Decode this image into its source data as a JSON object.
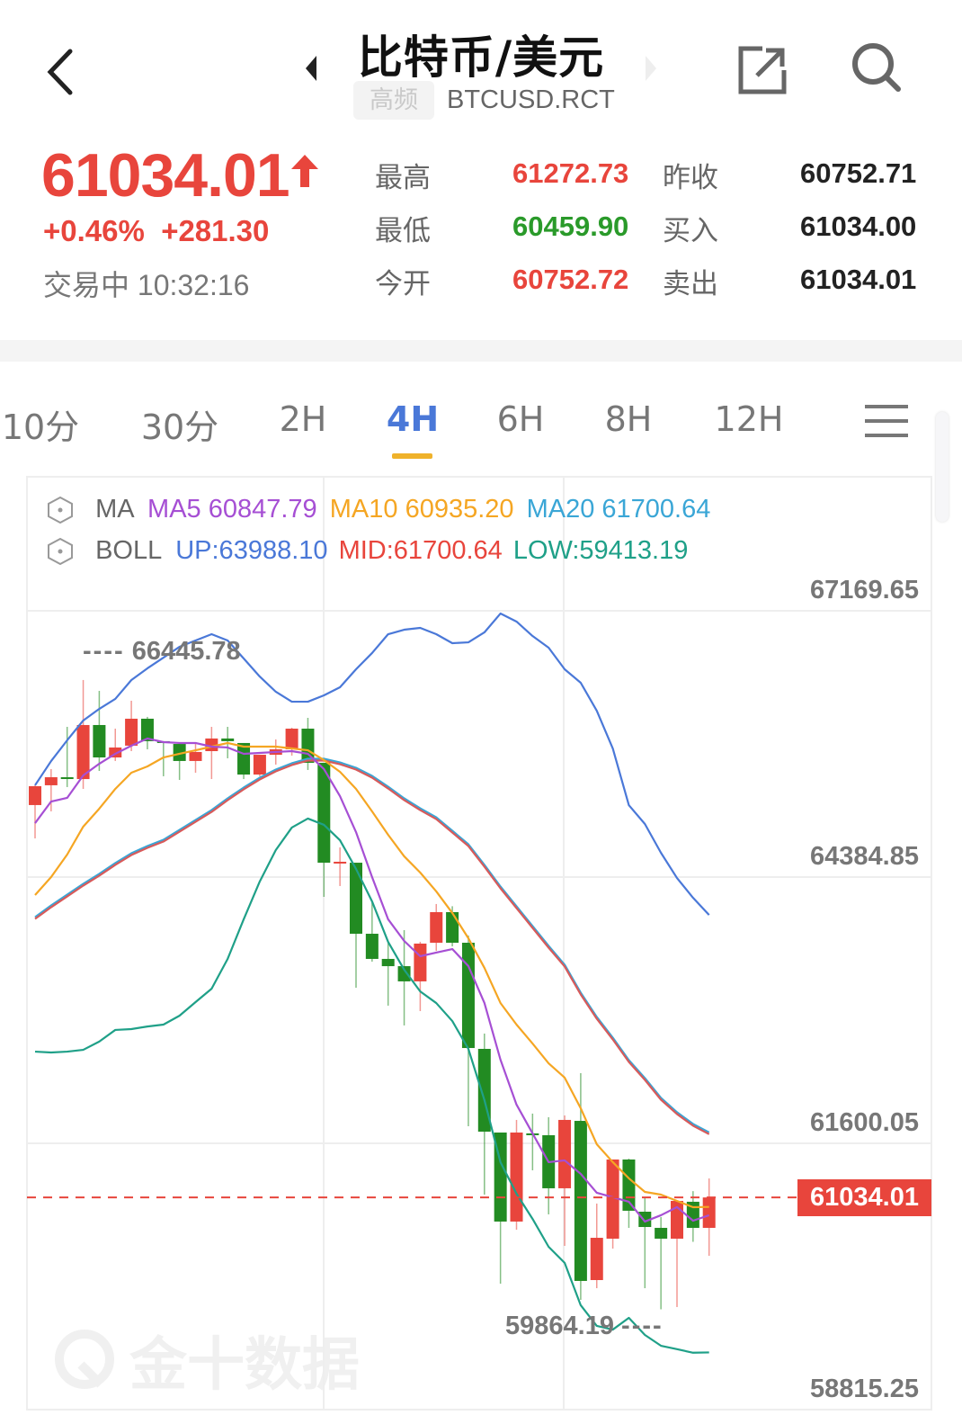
{
  "header": {
    "title": "比特币/美元",
    "badge": "高频",
    "symbol": "BTCUSD.RCT",
    "icons": [
      "back-chevron-icon",
      "prev-triangle-icon",
      "next-triangle-icon",
      "share-icon",
      "search-icon"
    ]
  },
  "quote": {
    "price": "61034.01",
    "direction": "up",
    "change_pct": "+0.46%",
    "change_abs": "+281.30",
    "status": "交易中 10:32:16",
    "stats": [
      {
        "label": "最高",
        "value": "61272.73",
        "color": "#e8453c"
      },
      {
        "label": "昨收",
        "value": "60752.71",
        "color": "#222222"
      },
      {
        "label": "最低",
        "value": "60459.90",
        "color": "#2a9a2a"
      },
      {
        "label": "买入",
        "value": "61034.00",
        "color": "#222222"
      },
      {
        "label": "今开",
        "value": "60752.72",
        "color": "#e8453c"
      },
      {
        "label": "卖出",
        "value": "61034.01",
        "color": "#222222"
      }
    ]
  },
  "tabs": {
    "items": [
      "10分",
      "30分",
      "2H",
      "4H",
      "6H",
      "8H",
      "12H"
    ],
    "active": "4H",
    "menu_icon": "hamburger-menu-icon"
  },
  "legend": {
    "ma_label": "MA",
    "ma5": "MA5 60847.79",
    "ma10": "MA10 60935.20",
    "ma20": "MA20 61700.64",
    "boll_label": "BOLL",
    "up": "UP:63988.10",
    "mid": "MID:61700.64",
    "low": "LOW:59413.19"
  },
  "colors": {
    "up": "#e8453c",
    "down": "#228b22",
    "ma5": "#a64fd4",
    "ma10": "#f5a623",
    "ma20": "#3aa6d6",
    "boll_up": "#4a78d8",
    "boll_mid": "#d85a5a",
    "boll_low": "#1fa088",
    "accent": "#4a78d8",
    "tab_underline": "#efb22b"
  },
  "watermark": "金十数据",
  "chart_data": {
    "type": "candlestick",
    "interval": "4H",
    "y_ticks": [
      "67169.65",
      "64384.85",
      "61600.05",
      "58815.25"
    ],
    "ylim": [
      58815.25,
      67169.65
    ],
    "grid": true,
    "current_price": "61034.01",
    "max_annotation": "66445.78",
    "min_annotation": "59864.19",
    "candles": [
      [
        65138,
        65345,
        64789,
        65335
      ],
      [
        65345,
        65514,
        65072,
        65429
      ],
      [
        65429,
        65956,
        65326,
        65420
      ],
      [
        65410,
        66445.78,
        65307,
        65975
      ],
      [
        65975,
        66332,
        65495,
        65636
      ],
      [
        65636,
        65937,
        65599,
        65740
      ],
      [
        65759,
        66229,
        65702,
        66041
      ],
      [
        66041,
        66060,
        65721,
        65806
      ],
      [
        65806,
        65806,
        65439,
        65787
      ],
      [
        65777,
        65777,
        65401,
        65599
      ],
      [
        65599,
        65796,
        65476,
        65693
      ],
      [
        65702,
        65956,
        65410,
        65834
      ],
      [
        65834,
        65956,
        65627,
        65806
      ],
      [
        65787,
        65787,
        65410,
        65457
      ],
      [
        65457,
        65664,
        65439,
        65664
      ],
      [
        65664,
        65824,
        65561,
        65721
      ],
      [
        65721,
        65947,
        65655,
        65937
      ],
      [
        65937,
        66050,
        65505,
        65580
      ],
      [
        65580,
        65580,
        64178,
        64535
      ],
      [
        64535,
        64695,
        64291,
        64545
      ],
      [
        64535,
        64535,
        63228,
        63792
      ],
      [
        63792,
        64122,
        63500,
        63529
      ],
      [
        63529,
        63698,
        63040,
        63453
      ],
      [
        63453,
        63830,
        62833,
        63294
      ],
      [
        63294,
        63708,
        62983,
        63689
      ],
      [
        63698,
        64103,
        63613,
        64018
      ],
      [
        64018,
        64080,
        63660,
        63698
      ],
      [
        63698,
        63773,
        61779,
        62597
      ],
      [
        62588,
        62748,
        61064,
        61722
      ],
      [
        61713,
        61713,
        60132,
        60782
      ],
      [
        60782,
        61845,
        60697,
        61713
      ],
      [
        61704,
        61911,
        61318,
        61695
      ],
      [
        61685,
        61873,
        60857,
        61130
      ],
      [
        61130,
        61892,
        60528,
        61845
      ],
      [
        61835,
        62334,
        59963,
        60161
      ],
      [
        60170,
        60970,
        60085,
        60612
      ],
      [
        60603,
        61431,
        60499,
        61431
      ],
      [
        61431,
        61440,
        60716,
        60895
      ],
      [
        60885,
        61026,
        60085,
        60725
      ],
      [
        60716,
        60829,
        59864.19,
        60603
      ],
      [
        60603,
        60998,
        59888,
        60998
      ],
      [
        60989,
        61100,
        60570,
        60716
      ],
      [
        60716,
        61233,
        60424,
        61034.01
      ]
    ],
    "ma5": [
      64949,
      65175,
      65213,
      65448,
      65570,
      65674,
      65758,
      65834,
      65796,
      65787,
      65787,
      65749,
      65740,
      65674,
      65683,
      65693,
      65702,
      65674,
      65514,
      65231,
      64855,
      64385,
      63943,
      63717,
      63557,
      63595,
      63632,
      63454,
      63068,
      62475,
      62005,
      61704,
      61403,
      61422,
      61281,
      61083,
      61036,
      60989,
      60782,
      60848,
      60933,
      60791,
      60847.79
    ],
    "ma10": [
      64197,
      64385,
      64620,
      64912,
      65100,
      65307,
      65476,
      65542,
      65636,
      65674,
      65711,
      65749,
      65787,
      65749,
      65749,
      65749,
      65730,
      65711,
      65608,
      65486,
      65307,
      65072,
      64827,
      64602,
      64432,
      64235,
      64009,
      63745,
      63435,
      63068,
      62842,
      62644,
      62437,
      62287,
      61967,
      61591,
      61403,
      61234,
      61092,
      61064,
      60998,
      60932,
      60935.2
    ],
    "boll_up": [
      65345,
      65598,
      65815,
      66022,
      66144,
      66248,
      66445,
      66568,
      66680,
      66793,
      66859,
      66925,
      66859,
      66671,
      66482,
      66323,
      66219,
      66219,
      66285,
      66370,
      66558,
      66728,
      66925,
      66972,
      66991,
      66925,
      66831,
      66840,
      66944,
      67141,
      67057,
      66906,
      66784,
      66558,
      66417,
      66125,
      65730,
      65137,
      64940,
      64639,
      64375,
      64168,
      63988.1
    ],
    "boll_mid": [
      63952,
      64074,
      64187,
      64300,
      64404,
      64517,
      64620,
      64695,
      64761,
      64864,
      64968,
      65071,
      65194,
      65307,
      65410,
      65495,
      65561,
      65608,
      65608,
      65570,
      65514,
      65429,
      65316,
      65194,
      65090,
      64996,
      64855,
      64714,
      64498,
      64272,
      64065,
      63858,
      63651,
      63454,
      63162,
      62908,
      62691,
      62456,
      62268,
      62061,
      61911,
      61789,
      61700.64
    ],
    "boll_low": [
      62559,
      62550,
      62559,
      62578,
      62664,
      62786,
      62795,
      62822,
      62842,
      62935,
      63077,
      63217,
      63529,
      63943,
      64338,
      64667,
      64903,
      64997,
      64931,
      64770,
      64470,
      64130,
      63707,
      63416,
      63189,
      63067,
      62879,
      62588,
      62052,
      61403,
      61073,
      60810,
      60518,
      60350,
      59907,
      59691,
      59652,
      59775,
      59596,
      59483,
      59447,
      59410,
      59413.19
    ]
  }
}
